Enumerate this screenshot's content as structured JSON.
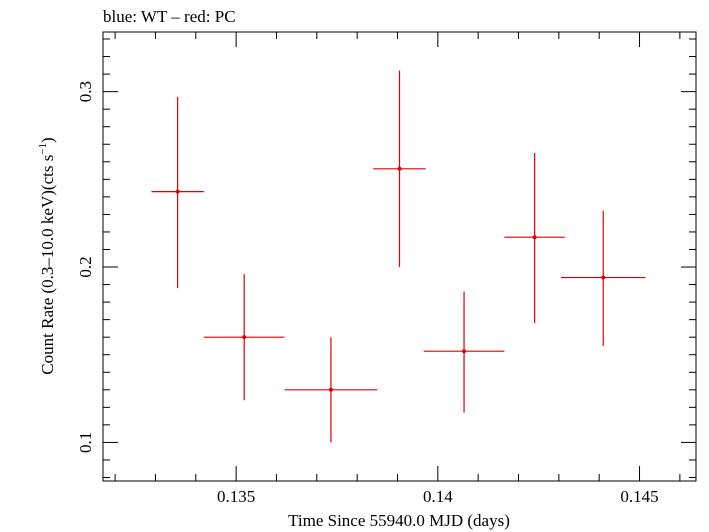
{
  "chart_data": {
    "type": "scatter",
    "title": "blue: WT – red: PC",
    "xlabel": "Time Since 55940.0 MJD (days)",
    "ylabel_main": "Count Rate (0.3–10.0 keV)(cts s",
    "ylabel_sup": "−1",
    "ylabel_end": ")",
    "xlim": [
      0.1317,
      0.1464
    ],
    "ylim": [
      0.078,
      0.334
    ],
    "x_ticks": [
      0.135,
      0.14,
      0.145
    ],
    "x_tick_labels": [
      "0.135",
      "0.14",
      "0.145"
    ],
    "x_minor_step": 0.001,
    "y_ticks": [
      0.1,
      0.2,
      0.3
    ],
    "y_tick_labels": [
      "0.1",
      "0.2",
      "0.3"
    ],
    "y_minor_step": 0.01,
    "grid": false,
    "series": [
      {
        "color": "#e00000",
        "points": [
          {
            "x": 0.13355,
            "y": 0.243,
            "xerr": 0.00065,
            "yerr_low": 0.055,
            "yerr_high": 0.054
          },
          {
            "x": 0.1352,
            "y": 0.16,
            "xerr": 0.001,
            "yerr_low": 0.036,
            "yerr_high": 0.036
          },
          {
            "x": 0.13735,
            "y": 0.13,
            "xerr": 0.00115,
            "yerr_low": 0.03,
            "yerr_high": 0.03
          },
          {
            "x": 0.13905,
            "y": 0.256,
            "xerr": 0.00065,
            "yerr_low": 0.056,
            "yerr_high": 0.056
          },
          {
            "x": 0.14065,
            "y": 0.152,
            "xerr": 0.001,
            "yerr_low": 0.035,
            "yerr_high": 0.034
          },
          {
            "x": 0.1424,
            "y": 0.217,
            "xerr": 0.00075,
            "yerr_low": 0.049,
            "yerr_high": 0.048
          },
          {
            "x": 0.1441,
            "y": 0.194,
            "xerr": 0.00105,
            "yerr_low": 0.039,
            "yerr_high": 0.038
          }
        ]
      }
    ]
  }
}
